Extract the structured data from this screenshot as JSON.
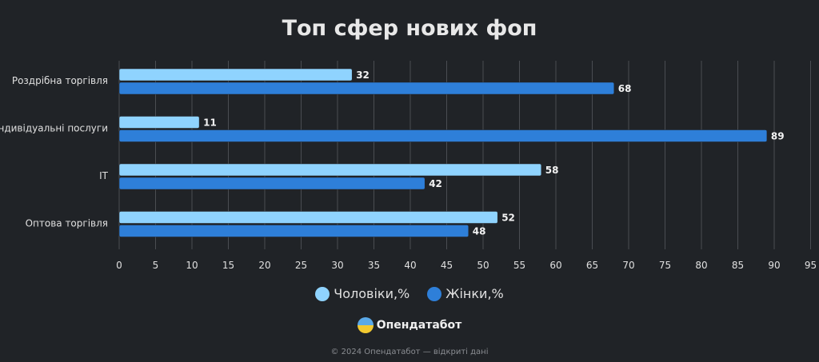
{
  "chart_data": {
    "type": "bar",
    "orientation": "horizontal",
    "title": "Топ сфер нових фоп",
    "categories": [
      "Роздрібна торгівля",
      "Індивідуальні послуги",
      "IT",
      "Оптова торгівля"
    ],
    "series": [
      {
        "name": "Чоловіки,%",
        "color": "#8fd3fe",
        "values": [
          32,
          11,
          58,
          52
        ]
      },
      {
        "name": "Жінки,%",
        "color": "#2e7fd9",
        "values": [
          68,
          89,
          42,
          48
        ]
      }
    ],
    "xlim": [
      0,
      95
    ],
    "xticks": [
      0,
      5,
      10,
      15,
      20,
      25,
      30,
      35,
      40,
      45,
      50,
      55,
      60,
      65,
      70,
      75,
      80,
      85,
      90,
      95
    ],
    "grid": true,
    "legend": "bottom"
  },
  "brand": {
    "name": "Опендатабот",
    "icon": "opendatabot-logo-icon"
  },
  "footer": "© 2024 Опендатабот — відкриті дані",
  "colors": {
    "background": "#202327"
  }
}
